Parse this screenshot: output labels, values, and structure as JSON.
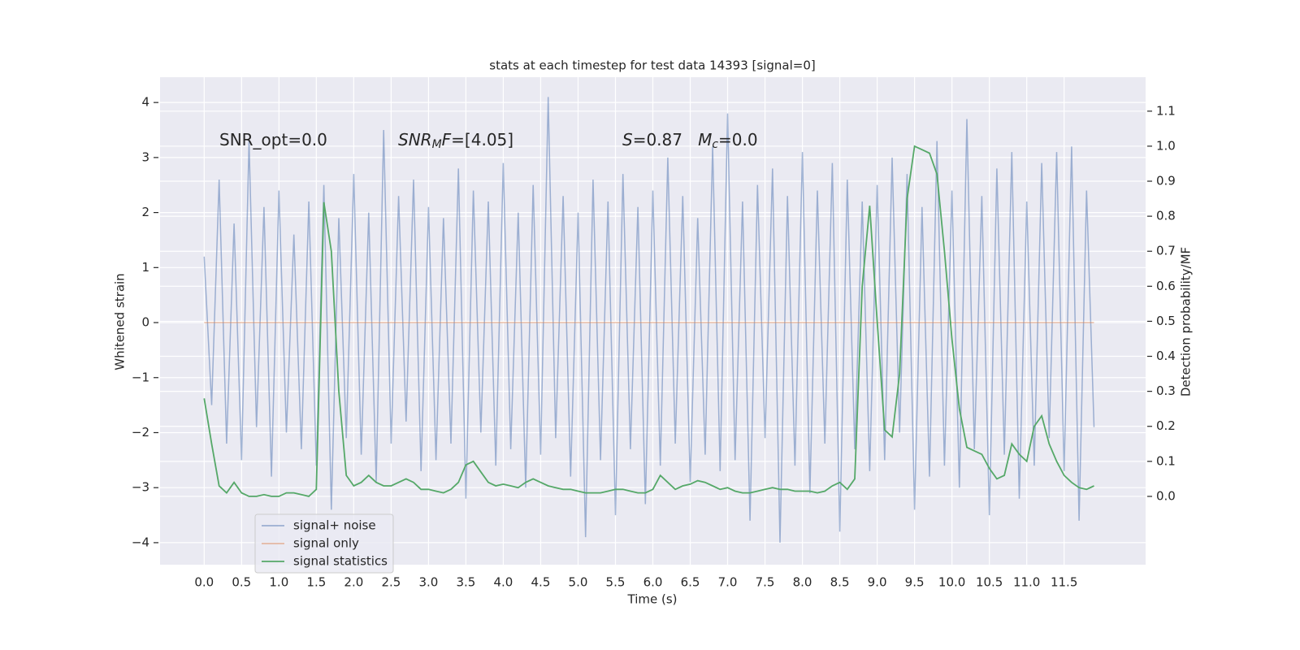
{
  "chart_data": {
    "type": "line",
    "title": "stats at each timestep for test data 14393 [signal=0]",
    "xlabel": "Time (s)",
    "ylabel": "Whitened strain",
    "y2label": "Detection probability/MF",
    "annotations": [
      [
        {
          "text": "SNR_opt=0.0",
          "italic": false,
          "sub": false
        }
      ],
      [
        {
          "text": "SNR",
          "italic": true,
          "sub": false
        },
        {
          "text": "M",
          "italic": true,
          "sub": true
        },
        {
          "text": "F",
          "italic": true,
          "sub": false
        },
        {
          "text": "=[4.05]",
          "italic": false,
          "sub": false
        }
      ],
      [
        {
          "text": "S",
          "italic": true,
          "sub": false
        },
        {
          "text": "=0.87   ",
          "italic": false,
          "sub": false
        },
        {
          "text": "M",
          "italic": true,
          "sub": false
        },
        {
          "text": "c",
          "italic": true,
          "sub": true
        },
        {
          "text": "=0.0",
          "italic": false,
          "sub": false
        }
      ]
    ],
    "x": [
      0.0,
      0.1,
      0.2,
      0.3,
      0.4,
      0.5,
      0.6,
      0.7,
      0.8,
      0.9,
      1.0,
      1.1,
      1.2,
      1.3,
      1.4,
      1.5,
      1.6,
      1.7,
      1.8,
      1.9,
      2.0,
      2.1,
      2.2,
      2.3,
      2.4,
      2.5,
      2.6,
      2.7,
      2.8,
      2.9,
      3.0,
      3.1,
      3.2,
      3.3,
      3.4,
      3.5,
      3.6,
      3.7,
      3.8,
      3.9,
      4.0,
      4.1,
      4.2,
      4.3,
      4.4,
      4.5,
      4.6,
      4.7,
      4.8,
      4.9,
      5.0,
      5.1,
      5.2,
      5.3,
      5.4,
      5.5,
      5.6,
      5.7,
      5.8,
      5.9,
      6.0,
      6.1,
      6.2,
      6.3,
      6.4,
      6.5,
      6.6,
      6.7,
      6.8,
      6.9,
      7.0,
      7.1,
      7.2,
      7.3,
      7.4,
      7.5,
      7.6,
      7.7,
      7.8,
      7.9,
      8.0,
      8.1,
      8.2,
      8.3,
      8.4,
      8.5,
      8.6,
      8.7,
      8.8,
      8.9,
      9.0,
      9.1,
      9.2,
      9.3,
      9.4,
      9.5,
      9.6,
      9.7,
      9.8,
      9.9,
      10.0,
      10.1,
      10.2,
      10.3,
      10.4,
      10.5,
      10.6,
      10.7,
      10.8,
      10.9,
      11.0,
      11.1,
      11.2,
      11.3,
      11.4,
      11.5,
      11.6,
      11.7,
      11.8,
      11.9
    ],
    "series": [
      {
        "name": "signal+ noise",
        "color": "#4c72b0",
        "opacity": 0.5,
        "axis": "y",
        "values": [
          1.2,
          -1.5,
          2.6,
          -2.2,
          1.8,
          -2.5,
          3.3,
          -1.9,
          2.1,
          -2.8,
          2.4,
          -2.0,
          1.6,
          -2.3,
          2.2,
          -2.6,
          2.5,
          -3.4,
          1.9,
          -2.1,
          2.7,
          -2.4,
          2.0,
          -2.9,
          3.5,
          -2.2,
          2.3,
          -1.8,
          2.6,
          -2.7,
          2.1,
          -2.5,
          1.9,
          -2.2,
          2.8,
          -3.2,
          2.4,
          -2.0,
          2.2,
          -2.6,
          2.9,
          -2.3,
          2.0,
          -3.0,
          2.5,
          -2.4,
          4.1,
          -2.1,
          2.3,
          -2.8,
          2.0,
          -3.9,
          2.6,
          -2.5,
          2.2,
          -3.5,
          2.7,
          -2.3,
          2.1,
          -3.3,
          2.4,
          -2.6,
          3.0,
          -2.2,
          2.3,
          -2.9,
          1.9,
          -2.4,
          3.2,
          -2.7,
          3.8,
          -2.5,
          2.2,
          -3.6,
          2.5,
          -2.1,
          2.8,
          -4.0,
          2.3,
          -2.6,
          3.1,
          -3.1,
          2.4,
          -2.2,
          2.9,
          -3.8,
          2.6,
          -2.3,
          2.2,
          -2.7,
          2.5,
          -2.5,
          3.0,
          -2.0,
          2.7,
          -3.4,
          2.1,
          -2.8,
          3.3,
          -2.6,
          2.4,
          -3.0,
          3.7,
          -2.3,
          2.3,
          -3.5,
          2.8,
          -2.4,
          3.1,
          -3.2,
          2.2,
          -2.6,
          2.9,
          -2.1,
          3.1,
          -2.7,
          3.2,
          -3.6,
          2.4,
          -1.9
        ]
      },
      {
        "name": "signal only",
        "color": "#dd8452",
        "opacity": 0.5,
        "axis": "y",
        "values": [
          0,
          0,
          0,
          0,
          0,
          0,
          0,
          0,
          0,
          0,
          0,
          0,
          0,
          0,
          0,
          0,
          0,
          0,
          0,
          0,
          0,
          0,
          0,
          0,
          0,
          0,
          0,
          0,
          0,
          0,
          0,
          0,
          0,
          0,
          0,
          0,
          0,
          0,
          0,
          0,
          0,
          0,
          0,
          0,
          0,
          0,
          0,
          0,
          0,
          0,
          0,
          0,
          0,
          0,
          0,
          0,
          0,
          0,
          0,
          0,
          0,
          0,
          0,
          0,
          0,
          0,
          0,
          0,
          0,
          0,
          0,
          0,
          0,
          0,
          0,
          0,
          0,
          0,
          0,
          0,
          0,
          0,
          0,
          0,
          0,
          0,
          0,
          0,
          0,
          0,
          0,
          0,
          0,
          0,
          0,
          0,
          0,
          0,
          0,
          0,
          0,
          0,
          0,
          0,
          0,
          0,
          0,
          0,
          0,
          0,
          0,
          0,
          0,
          0,
          0,
          0,
          0,
          0,
          0,
          0
        ]
      },
      {
        "name": "signal statistics",
        "color": "#55a868",
        "opacity": 1,
        "axis": "y2",
        "values": [
          0.28,
          0.15,
          0.03,
          0.01,
          0.04,
          0.01,
          0.0,
          0.0,
          0.005,
          0.0,
          0.0,
          0.01,
          0.01,
          0.005,
          0.0,
          0.02,
          0.84,
          0.7,
          0.3,
          0.06,
          0.03,
          0.04,
          0.06,
          0.04,
          0.03,
          0.03,
          0.04,
          0.05,
          0.04,
          0.02,
          0.02,
          0.015,
          0.01,
          0.02,
          0.04,
          0.09,
          0.1,
          0.07,
          0.04,
          0.03,
          0.035,
          0.03,
          0.025,
          0.04,
          0.05,
          0.04,
          0.03,
          0.025,
          0.02,
          0.02,
          0.015,
          0.01,
          0.01,
          0.01,
          0.015,
          0.02,
          0.02,
          0.015,
          0.01,
          0.01,
          0.02,
          0.06,
          0.04,
          0.02,
          0.03,
          0.035,
          0.045,
          0.04,
          0.03,
          0.02,
          0.025,
          0.015,
          0.01,
          0.01,
          0.015,
          0.02,
          0.025,
          0.02,
          0.02,
          0.015,
          0.015,
          0.015,
          0.01,
          0.015,
          0.03,
          0.04,
          0.02,
          0.05,
          0.6,
          0.83,
          0.5,
          0.19,
          0.17,
          0.35,
          0.85,
          1.0,
          0.99,
          0.98,
          0.92,
          0.7,
          0.45,
          0.25,
          0.14,
          0.13,
          0.12,
          0.08,
          0.05,
          0.06,
          0.15,
          0.12,
          0.1,
          0.2,
          0.23,
          0.15,
          0.1,
          0.06,
          0.04,
          0.025,
          0.02,
          0.03
        ]
      }
    ],
    "xlim": [
      -0.59,
      12.59
    ],
    "ylim": [
      -4.4,
      4.46
    ],
    "y2lim": [
      -0.195,
      1.197
    ],
    "xticks": [
      {
        "value": 0,
        "label": "0.0"
      },
      {
        "value": 0.5,
        "label": "0.5"
      },
      {
        "value": 1,
        "label": "1.0"
      },
      {
        "value": 1.5,
        "label": "1.5"
      },
      {
        "value": 2,
        "label": "2.0"
      },
      {
        "value": 2.5,
        "label": "2.5"
      },
      {
        "value": 3,
        "label": "3.0"
      },
      {
        "value": 3.5,
        "label": "3.5"
      },
      {
        "value": 4,
        "label": "4.0"
      },
      {
        "value": 4.5,
        "label": "4.5"
      },
      {
        "value": 5,
        "label": "5.0"
      },
      {
        "value": 5.5,
        "label": "5.5"
      },
      {
        "value": 6,
        "label": "6.0"
      },
      {
        "value": 6.5,
        "label": "6.5"
      },
      {
        "value": 7,
        "label": "7.0"
      },
      {
        "value": 7.5,
        "label": "7.5"
      },
      {
        "value": 8,
        "label": "8.0"
      },
      {
        "value": 8.5,
        "label": "8.5"
      },
      {
        "value": 9,
        "label": "9.0"
      },
      {
        "value": 9.5,
        "label": "9.5"
      },
      {
        "value": 10,
        "label": "10.0"
      },
      {
        "value": 10.5,
        "label": "10.5"
      },
      {
        "value": 11,
        "label": "11.0"
      },
      {
        "value": 11.5,
        "label": "11.5"
      }
    ],
    "yticks": [
      {
        "value": -4,
        "label": "−4"
      },
      {
        "value": -3,
        "label": "−3"
      },
      {
        "value": -2,
        "label": "−2"
      },
      {
        "value": -1,
        "label": "−1"
      },
      0,
      1,
      2,
      3,
      4
    ],
    "y2ticks": [
      {
        "value": 0,
        "label": "0.0"
      },
      {
        "value": 0.1,
        "label": "0.1"
      },
      {
        "value": 0.2,
        "label": "0.2"
      },
      {
        "value": 0.3,
        "label": "0.3"
      },
      {
        "value": 0.4,
        "label": "0.4"
      },
      {
        "value": 0.5,
        "label": "0.5"
      },
      {
        "value": 0.6,
        "label": "0.6"
      },
      {
        "value": 0.7,
        "label": "0.7"
      },
      {
        "value": 0.8,
        "label": "0.8"
      },
      {
        "value": 0.9,
        "label": "0.9"
      },
      {
        "value": 1,
        "label": "1.0"
      },
      {
        "value": 1.1,
        "label": "1.1"
      }
    ],
    "grid": true,
    "legend_loc": "lower left"
  }
}
